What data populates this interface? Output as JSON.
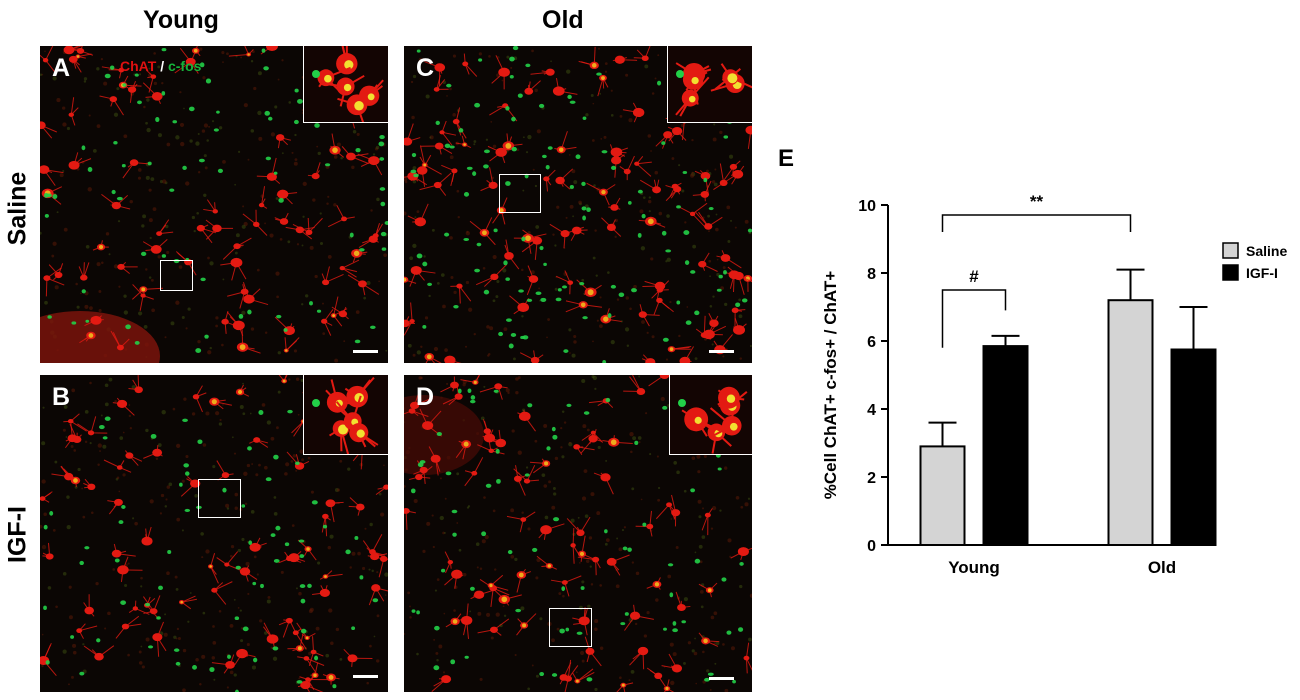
{
  "columns": {
    "young": "Young",
    "old": "Old"
  },
  "rows": {
    "saline": "Saline",
    "igf": "IGF-I"
  },
  "stain_legend": {
    "chat": "ChAT",
    "sep": "/",
    "cfos": "c-fos"
  },
  "panels": [
    {
      "id": "A",
      "label": "A",
      "seed": 11
    },
    {
      "id": "B",
      "label": "B",
      "seed": 23
    },
    {
      "id": "C",
      "label": "C",
      "seed": 37
    },
    {
      "id": "D",
      "label": "D",
      "seed": 53
    }
  ],
  "colors": {
    "chat_red": "#e31a12",
    "cfos_green": "#22d048",
    "saline_bar": "#d4d4d4",
    "igf_bar": "#000000"
  },
  "chart_data": {
    "panel_label": "E",
    "type": "bar",
    "categories": [
      "Young",
      "Old"
    ],
    "series": [
      {
        "name": "Saline",
        "values": [
          2.9,
          7.2
        ],
        "errors": [
          0.7,
          0.9
        ],
        "color": "#d4d4d4"
      },
      {
        "name": "IGF-I",
        "values": [
          5.85,
          5.75
        ],
        "errors": [
          0.3,
          1.25
        ],
        "color": "#000000"
      }
    ],
    "ylabel": "%Cell ChAT+ c-fos+ / ChAT+",
    "xlabel": "",
    "ylim": [
      0,
      10
    ],
    "yticks": [
      "0",
      "2",
      "4",
      "6",
      "8",
      "10"
    ],
    "legend_position": "top-right",
    "annotations": [
      {
        "text": "**",
        "between": "Young-Saline vs Old-Saline"
      },
      {
        "text": "#",
        "between": "Young-Saline vs Young-IGF-I"
      }
    ]
  }
}
